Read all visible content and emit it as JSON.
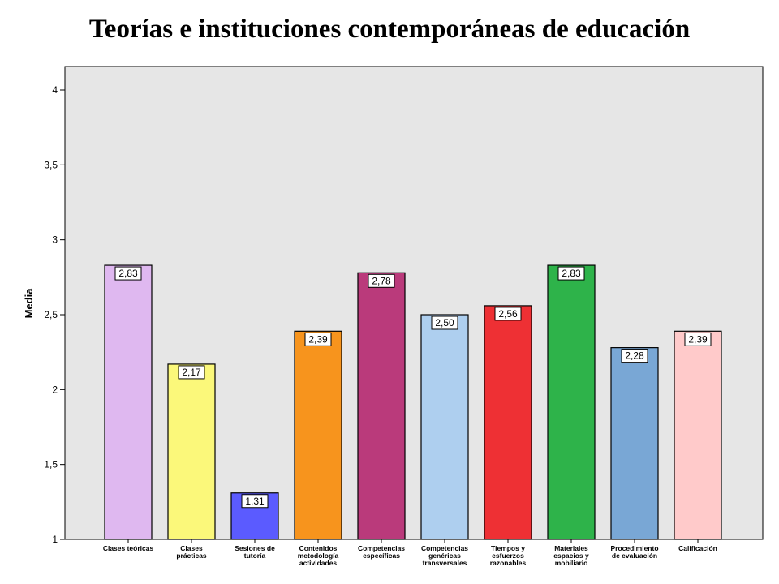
{
  "title": "Teorías e instituciones contemporáneas de educación",
  "chart_data": {
    "type": "bar",
    "categories": [
      [
        "Clases teóricas"
      ],
      [
        "Clases",
        "prácticas"
      ],
      [
        "Sesiones de",
        "tutoría"
      ],
      [
        "Contenidos",
        "metodología",
        "actividades"
      ],
      [
        "Competencias",
        "específicas"
      ],
      [
        "Competencias",
        "genéricas",
        "transversales"
      ],
      [
        "Tiempos y",
        "esfuerzos",
        "razonables"
      ],
      [
        "Materiales",
        "espacios y",
        "mobiliario"
      ],
      [
        "Procedimiento",
        "de evaluación"
      ],
      [
        "Calificación"
      ]
    ],
    "values": [
      2.83,
      2.17,
      1.31,
      2.39,
      2.78,
      2.5,
      2.56,
      2.83,
      2.28,
      2.39
    ],
    "value_labels": [
      "2,83",
      "2,17",
      "1,31",
      "2,39",
      "2,78",
      "2,50",
      "2,56",
      "2,83",
      "2,28",
      "2,39"
    ],
    "colors": [
      "#dfb8f0",
      "#fbf87a",
      "#5b5bff",
      "#f7941d",
      "#ba3a7b",
      "#aecfef",
      "#ee3034",
      "#2eb34a",
      "#79a7d5",
      "#ffcaca"
    ],
    "ylabel": "Media",
    "xlabel": "",
    "ylim": [
      1,
      4
    ],
    "yticks": [
      1,
      1.5,
      2,
      2.5,
      3,
      3.5,
      4
    ],
    "ytick_labels": [
      "1",
      "1,5",
      "2",
      "2,5",
      "3",
      "3,5",
      "4"
    ],
    "plot_background": "#e6e6e6",
    "grid": false,
    "legend": "none"
  }
}
